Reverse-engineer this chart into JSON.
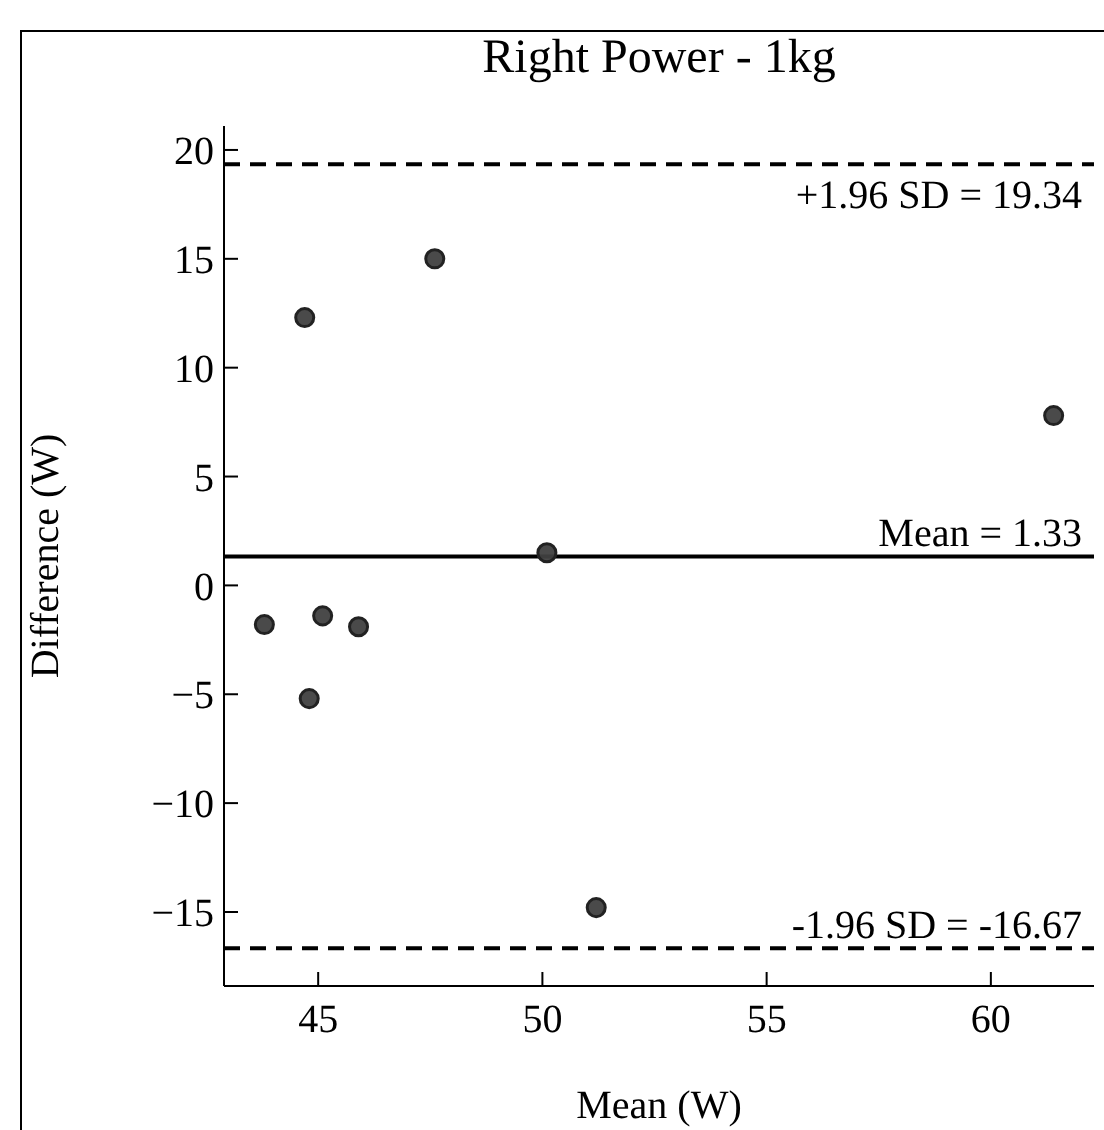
{
  "chart_data": {
    "type": "scatter",
    "title": "Right Power - 1kg",
    "xlabel": "Mean (W)",
    "ylabel": "Difference (W)",
    "x": [
      44.7,
      47.6,
      61.4,
      50.1,
      43.8,
      45.1,
      45.9,
      44.8,
      51.2
    ],
    "series": [
      {
        "color": "#404040",
        "values": [
          12.3,
          15.0,
          7.8,
          1.5,
          -1.8,
          -1.4,
          -1.9,
          -5.2,
          -14.8
        ]
      }
    ],
    "xlim": [
      42.9,
      62.3
    ],
    "xticks": [
      45,
      50,
      55,
      60
    ],
    "ylim": [
      -18.4,
      21.1
    ],
    "yticks": [
      {
        "value": -15,
        "label": "−15"
      },
      {
        "value": -10,
        "label": "−10"
      },
      {
        "value": -5,
        "label": "−5"
      },
      0,
      5,
      10,
      15,
      20
    ],
    "ref_lines": [
      {
        "axis": "y",
        "value": 19.34,
        "label": "+1.96 SD = 19.34",
        "line_style": "dashed",
        "color": "#000000"
      },
      {
        "axis": "y",
        "value": 1.33,
        "label": "Mean = 1.33",
        "line_style": "solid",
        "color": "#000000"
      },
      {
        "axis": "y",
        "value": -16.67,
        "label": "-1.96 SD = -16.67",
        "line_style": "dashed",
        "color": "#000000"
      }
    ],
    "marker": "circle",
    "grid": false,
    "legend": false
  }
}
